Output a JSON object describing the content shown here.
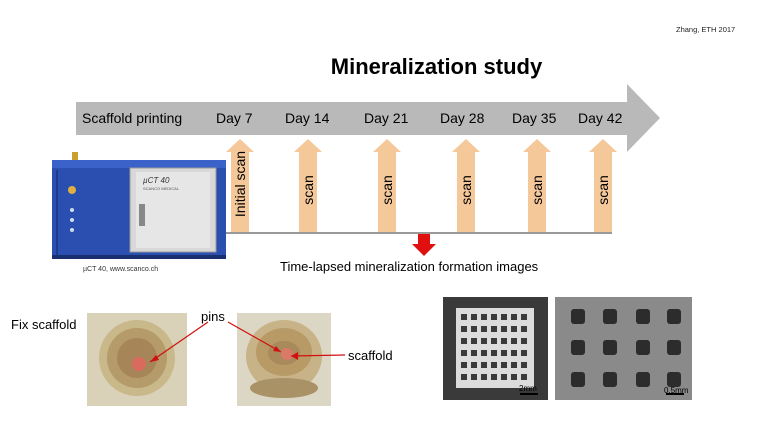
{
  "credit": "Zhang, ETH 2017",
  "title": "Mineralization study",
  "timeline": {
    "stages": [
      "Scaffold printing",
      "Day 7",
      "Day 14",
      "Day 21",
      "Day 28",
      "Day 35",
      "Day 42"
    ],
    "scan_labels": [
      "Initial scan",
      "scan",
      "scan",
      "scan",
      "scan",
      "scan"
    ]
  },
  "caption": "Time-lapsed mineralization formation images",
  "device": {
    "caption": "µCT 40, www.scanco.ch",
    "panel_label": "µCT 40",
    "brand": "SCANCO MEDICAL"
  },
  "photos": {
    "fix_scaffold": "Fix scaffold",
    "pins": "pins",
    "scaffold": "scaffold"
  },
  "sem": {
    "scale1": "2mm",
    "scale2": "0.5mm"
  },
  "colors": {
    "arrow_gray": "#b9b9b9",
    "scan_arrow": "#f5c89a",
    "red": "#e01010",
    "device_blue": "#2a4fb0"
  }
}
